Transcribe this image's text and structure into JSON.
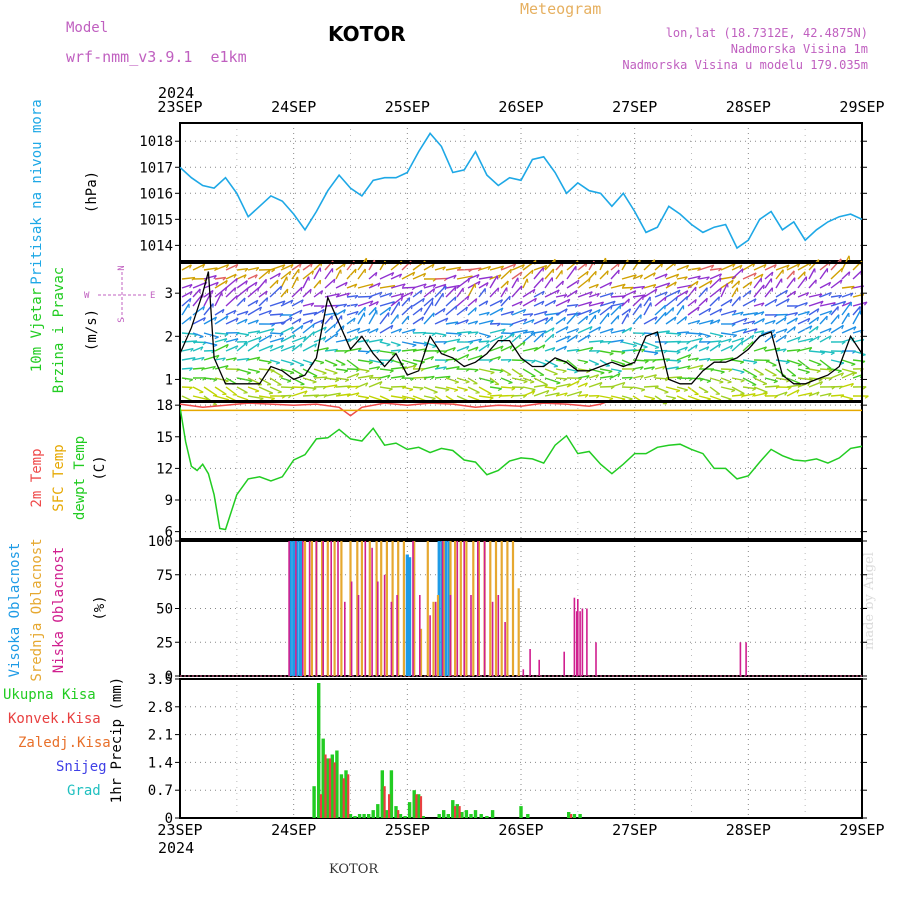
{
  "header": {
    "model_label": "Model",
    "model_name": "wrf-nmm_v3.9.1  e1km",
    "station": "KOTOR",
    "product": "Meteogram",
    "lonlat": "lon,lat (18.7312E, 42.4875N)",
    "elevation": "Nadmorska Visina 1m",
    "model_elevation": "Nadmorska Visina u modelu 179.035m",
    "year_top": "2024",
    "year_bottom": "2024",
    "footer_station": "KOTOR",
    "watermark": "made by Angel"
  },
  "colors": {
    "pressure": "#1ea8e6",
    "temp2m": "#ef4a4a",
    "sfc_temp": "#e6a800",
    "dewpt": "#22cc22",
    "high_cloud": "#1e9be6",
    "mid_cloud": "#e6a830",
    "low_cloud": "#d01f8f",
    "precip_total": "#22cc22",
    "precip_conv": "#e84040",
    "precip_frozen": "#e8702a",
    "snow": "#4040e6",
    "hail": "#20c0c0",
    "model_text": "#c060c0",
    "meteogram_text": "#e6b060",
    "wind_speed_line": "#000000"
  },
  "chart_data": [
    {
      "id": "pressure",
      "type": "line",
      "ylabel_rot": "Pritisak na nivou mora",
      "unit": "(hPa)",
      "x_ticks": [
        "23SEP",
        "24SEP",
        "25SEP",
        "26SEP",
        "27SEP",
        "28SEP",
        "29SEP"
      ],
      "x_range_days": [
        0,
        6
      ],
      "ylim": [
        1013.4,
        1018.7
      ],
      "y_ticks": [
        1014,
        1015,
        1016,
        1017,
        1018
      ],
      "grid": true,
      "x_days": [
        0,
        0.1,
        0.2,
        0.3,
        0.4,
        0.5,
        0.6,
        0.7,
        0.8,
        0.9,
        1.0,
        1.1,
        1.2,
        1.3,
        1.4,
        1.5,
        1.6,
        1.7,
        1.8,
        1.9,
        2.0,
        2.1,
        2.2,
        2.3,
        2.4,
        2.5,
        2.6,
        2.7,
        2.8,
        2.9,
        3.0,
        3.1,
        3.2,
        3.3,
        3.4,
        3.5,
        3.6,
        3.7,
        3.8,
        3.9,
        4.0,
        4.1,
        4.2,
        4.3,
        4.4,
        4.5,
        4.6,
        4.7,
        4.8,
        4.9,
        5.0,
        5.1,
        5.2,
        5.3,
        5.4,
        5.5,
        5.6,
        5.7,
        5.8,
        5.9,
        6.0
      ],
      "values": [
        1017.0,
        1016.6,
        1016.3,
        1016.2,
        1016.6,
        1016.0,
        1015.1,
        1015.5,
        1015.9,
        1015.7,
        1015.2,
        1014.6,
        1015.3,
        1016.1,
        1016.7,
        1016.2,
        1015.9,
        1016.5,
        1016.6,
        1016.6,
        1016.8,
        1017.6,
        1018.3,
        1017.8,
        1016.8,
        1016.9,
        1017.6,
        1016.7,
        1016.3,
        1016.6,
        1016.5,
        1017.3,
        1017.4,
        1016.8,
        1016.0,
        1016.4,
        1016.1,
        1016.0,
        1015.5,
        1016.0,
        1015.3,
        1014.5,
        1014.7,
        1015.5,
        1015.2,
        1014.8,
        1014.5,
        1014.7,
        1014.8,
        1013.9,
        1014.2,
        1015.0,
        1015.3,
        1014.6,
        1014.9,
        1014.2,
        1014.6,
        1014.9,
        1015.1,
        1015.2,
        1015.0
      ]
    },
    {
      "id": "wind",
      "type": "line",
      "ylabel_rot1": "10m Vjetar",
      "ylabel_rot2": "Brzina i Pravac",
      "unit": "(m/s)",
      "compass_w": "W",
      "compass_e": "E",
      "compass_n": "N",
      "compass_s": "S",
      "ylim": [
        0.5,
        3.7
      ],
      "y_ticks": [
        1,
        2,
        3
      ],
      "grid": true,
      "x_days": [
        0,
        0.1,
        0.2,
        0.25,
        0.3,
        0.4,
        0.5,
        0.6,
        0.7,
        0.8,
        0.9,
        1.0,
        1.1,
        1.2,
        1.3,
        1.4,
        1.5,
        1.6,
        1.7,
        1.8,
        1.9,
        2.0,
        2.1,
        2.2,
        2.3,
        2.4,
        2.5,
        2.6,
        2.7,
        2.8,
        2.9,
        3.0,
        3.1,
        3.2,
        3.3,
        3.4,
        3.5,
        3.6,
        3.7,
        3.8,
        3.9,
        4.0,
        4.1,
        4.2,
        4.3,
        4.4,
        4.5,
        4.6,
        4.7,
        4.8,
        4.9,
        5.0,
        5.1,
        5.2,
        5.3,
        5.4,
        5.5,
        5.6,
        5.7,
        5.8,
        5.9,
        6.0
      ],
      "values": [
        1.6,
        2.2,
        3.0,
        3.5,
        1.5,
        0.9,
        0.9,
        0.9,
        0.9,
        1.3,
        1.2,
        1.0,
        1.1,
        1.5,
        2.9,
        2.3,
        1.7,
        2.0,
        1.6,
        1.3,
        1.6,
        1.1,
        1.2,
        2.0,
        1.6,
        1.5,
        1.3,
        1.4,
        1.6,
        1.9,
        1.9,
        1.5,
        1.3,
        1.3,
        1.5,
        1.4,
        1.2,
        1.2,
        1.3,
        1.4,
        1.3,
        1.4,
        2.0,
        2.1,
        1.0,
        0.9,
        0.9,
        1.2,
        1.4,
        1.4,
        1.5,
        1.7,
        2.0,
        2.1,
        1.1,
        0.9,
        0.9,
        1.0,
        1.1,
        1.3,
        2.0,
        1.6
      ]
    },
    {
      "id": "temperature",
      "type": "line",
      "ylabel_rot1": "2m Temp",
      "ylabel_rot2": "SFC Temp",
      "ylabel_rot3": "dewpt Temp",
      "unit": "(C)",
      "ylim": [
        5.3,
        18.3
      ],
      "y_ticks": [
        6,
        9,
        12,
        15,
        18
      ],
      "grid": true,
      "series": [
        {
          "key": "temp2m",
          "x_days": [
            0,
            0.2,
            0.4,
            0.6,
            0.8,
            1.0,
            1.2,
            1.4,
            1.5,
            1.6,
            1.8,
            2.0,
            2.2,
            2.4,
            2.6,
            2.8,
            3.0,
            3.2,
            3.4,
            3.6,
            3.7,
            3.8,
            4.0,
            4.2,
            4.4,
            4.6,
            4.8,
            5.0,
            5.2,
            5.4,
            5.6,
            5.8,
            6.0
          ],
          "values": [
            18.1,
            17.8,
            18.0,
            18.2,
            18.1,
            18.0,
            18.1,
            17.8,
            17.0,
            17.8,
            18.2,
            18.0,
            18.2,
            18.1,
            17.8,
            18.0,
            17.9,
            18.2,
            18.1,
            17.9,
            18.1,
            18.5,
            18.5,
            18.5,
            18.5,
            18.5,
            18.5,
            18.5,
            18.5,
            18.5,
            18.5,
            18.5,
            18.5
          ]
        },
        {
          "key": "sfc_temp",
          "x_days": [
            0,
            6
          ],
          "values": [
            17.5,
            17.5
          ]
        },
        {
          "key": "dewpt",
          "x_days": [
            0,
            0.05,
            0.1,
            0.15,
            0.2,
            0.25,
            0.3,
            0.35,
            0.4,
            0.5,
            0.6,
            0.7,
            0.8,
            0.9,
            1.0,
            1.1,
            1.2,
            1.3,
            1.4,
            1.5,
            1.6,
            1.7,
            1.8,
            1.9,
            2.0,
            2.1,
            2.2,
            2.3,
            2.4,
            2.5,
            2.6,
            2.7,
            2.8,
            2.9,
            3.0,
            3.1,
            3.2,
            3.3,
            3.4,
            3.5,
            3.6,
            3.7,
            3.8,
            3.9,
            4.0,
            4.1,
            4.2,
            4.3,
            4.4,
            4.5,
            4.6,
            4.7,
            4.8,
            4.9,
            5.0,
            5.1,
            5.2,
            5.3,
            5.4,
            5.5,
            5.6,
            5.7,
            5.8,
            5.9,
            6.0
          ],
          "values": [
            17.8,
            14.5,
            12.2,
            11.8,
            12.4,
            11.5,
            9.5,
            6.3,
            6.2,
            9.5,
            11.0,
            11.2,
            10.8,
            11.2,
            12.8,
            13.3,
            14.8,
            14.9,
            15.7,
            14.8,
            14.6,
            15.8,
            14.2,
            14.4,
            13.8,
            14.0,
            13.5,
            13.9,
            13.7,
            12.8,
            12.6,
            11.4,
            11.8,
            12.7,
            13.0,
            12.9,
            12.5,
            14.2,
            15.1,
            13.4,
            13.6,
            12.4,
            11.5,
            12.4,
            13.4,
            13.4,
            14.0,
            14.2,
            14.3,
            13.8,
            13.4,
            12.0,
            12.0,
            11.0,
            11.3,
            12.6,
            13.8,
            13.2,
            12.8,
            12.7,
            12.9,
            12.5,
            13.0,
            13.9,
            14.1
          ]
        }
      ]
    },
    {
      "id": "cloud",
      "type": "bar",
      "ylabel_rot1": "Visoka Oblacnost",
      "ylabel_rot2": "Srednja Oblacnost",
      "ylabel_rot3": "Niska Oblacnost",
      "unit": "(%)",
      "ylim": [
        0,
        100
      ],
      "y_ticks": [
        0,
        25,
        50,
        75,
        100
      ],
      "grid": true,
      "series": [
        {
          "key": "high_cloud",
          "x_days": [
            0.97,
            1.0,
            1.03,
            1.06,
            2.0,
            2.02,
            2.28,
            2.31,
            2.34,
            2.37
          ],
          "values": [
            100,
            100,
            100,
            100,
            90,
            88,
            100,
            100,
            100,
            100
          ]
        },
        {
          "key": "mid_cloud",
          "x_days": [
            1.1,
            1.16,
            1.2,
            1.25,
            1.3,
            1.36,
            1.42,
            1.5,
            1.56,
            1.6,
            1.67,
            1.73,
            1.77,
            1.82,
            1.87,
            1.92,
            1.97,
            2.06,
            2.12,
            2.18,
            2.23,
            2.27,
            2.32,
            2.38,
            2.42,
            2.47,
            2.52,
            2.58,
            2.63,
            2.68,
            2.73,
            2.78,
            2.83,
            2.88,
            2.93,
            2.98
          ],
          "values": [
            100,
            100,
            100,
            100,
            100,
            100,
            100,
            100,
            100,
            100,
            100,
            100,
            100,
            100,
            100,
            100,
            100,
            100,
            35,
            100,
            55,
            60,
            100,
            100,
            100,
            100,
            100,
            100,
            100,
            100,
            100,
            100,
            100,
            100,
            100,
            65
          ]
        },
        {
          "key": "low_cloud",
          "x_days": [
            0.96,
            1.02,
            1.08,
            1.14,
            1.2,
            1.26,
            1.33,
            1.39,
            1.45,
            1.51,
            1.57,
            1.63,
            1.69,
            1.74,
            1.8,
            1.86,
            1.91,
            2.05,
            2.11,
            2.2,
            2.25,
            2.31,
            2.38,
            2.44,
            2.5,
            2.56,
            2.62,
            2.68,
            2.75,
            2.8,
            2.86,
            3.02,
            3.08,
            3.16,
            3.38,
            3.47,
            3.5,
            3.49,
            3.52,
            3.54,
            3.58,
            3.66,
            4.93,
            4.98
          ],
          "values": [
            100,
            100,
            100,
            100,
            100,
            100,
            100,
            100,
            55,
            70,
            60,
            100,
            95,
            70,
            75,
            55,
            60,
            100,
            60,
            45,
            55,
            100,
            60,
            100,
            100,
            60,
            100,
            100,
            55,
            60,
            40,
            5,
            20,
            12,
            18,
            58,
            57,
            48,
            48,
            50,
            50,
            25,
            25,
            25
          ]
        }
      ]
    },
    {
      "id": "precip",
      "type": "bar",
      "ylabel_rot": "1hr Precip (mm)",
      "legend": [
        "Ukupna Kisa",
        "Konvek.Kisa",
        "Zaledj.Kisa",
        "Snijeg",
        "Grad"
      ],
      "ylim": [
        0,
        3.5
      ],
      "y_ticks": [
        0,
        0.7,
        1.4,
        2.1,
        2.8,
        3.5
      ],
      "grid": true,
      "series": [
        {
          "key": "precip_total",
          "x_days": [
            1.18,
            1.22,
            1.26,
            1.3,
            1.34,
            1.38,
            1.42,
            1.46,
            1.5,
            1.54,
            1.58,
            1.62,
            1.66,
            1.7,
            1.74,
            1.78,
            1.82,
            1.86,
            1.9,
            1.94,
            1.98,
            2.02,
            2.06,
            2.1,
            2.14,
            2.28,
            2.32,
            2.36,
            2.4,
            2.44,
            2.48,
            2.52,
            2.56,
            2.6,
            2.65,
            2.7,
            2.75,
            3.0,
            3.06,
            3.42,
            3.47,
            3.52
          ],
          "values": [
            0.8,
            3.4,
            2.0,
            1.5,
            1.6,
            1.7,
            1.1,
            1.2,
            0.1,
            0.05,
            0.1,
            0.1,
            0.1,
            0.2,
            0.35,
            1.2,
            0.2,
            1.2,
            0.3,
            0.1,
            0.05,
            0.4,
            0.7,
            0.6,
            0.05,
            0.1,
            0.2,
            0.1,
            0.45,
            0.35,
            0.15,
            0.2,
            0.1,
            0.2,
            0.1,
            0.05,
            0.2,
            0.3,
            0.1,
            0.15,
            0.1,
            0.1
          ]
        },
        {
          "key": "precip_conv",
          "x_days": [
            1.24,
            1.28,
            1.32,
            1.36,
            1.44,
            1.48,
            1.8,
            1.84,
            1.92,
            2.08,
            2.12,
            2.42,
            2.46,
            3.44
          ],
          "values": [
            0.6,
            1.6,
            1.5,
            1.4,
            1.0,
            1.1,
            0.8,
            0.6,
            0.2,
            0.6,
            0.55,
            0.3,
            0.3,
            0.1
          ]
        }
      ]
    }
  ]
}
